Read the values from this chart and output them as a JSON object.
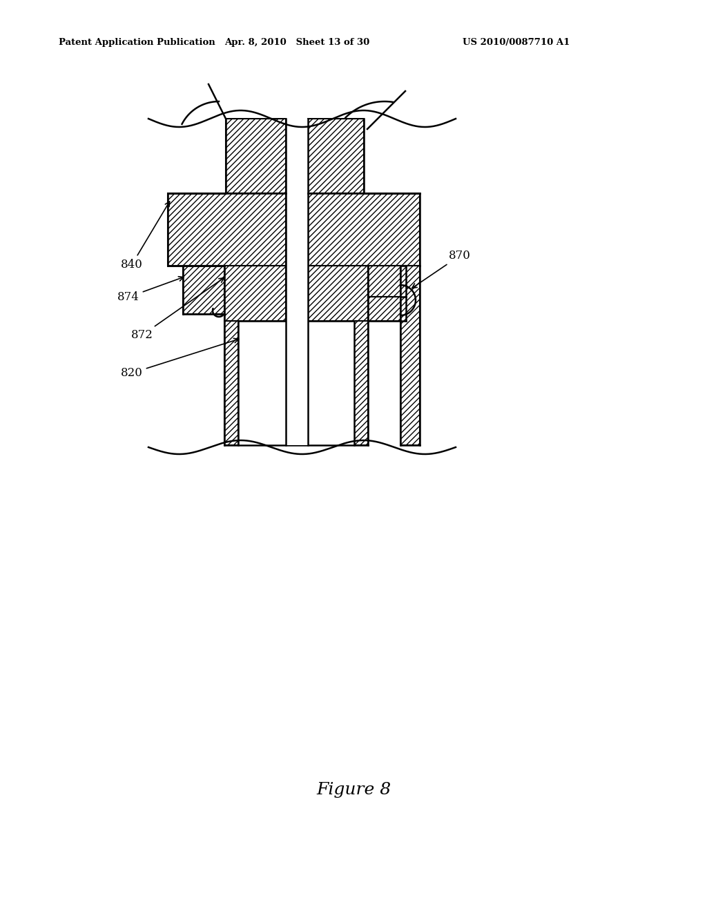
{
  "title_left": "Patent Application Publication",
  "title_center": "Apr. 8, 2010   Sheet 13 of 30",
  "title_right": "US 2010/0087710 A1",
  "figure_label": "Figure 8",
  "bg_color": "#ffffff",
  "line_color": "#000000",
  "line_width": 1.8
}
